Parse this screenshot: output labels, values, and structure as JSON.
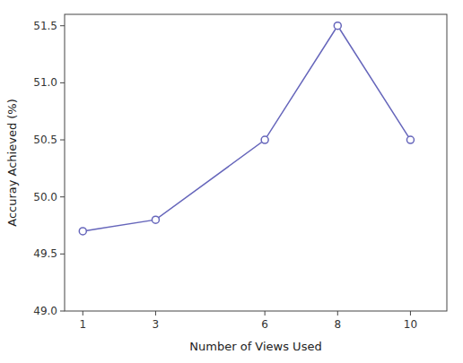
{
  "chart_data": {
    "type": "line",
    "x": [
      1,
      3,
      6,
      8,
      10
    ],
    "values": [
      49.7,
      49.8,
      50.5,
      51.5,
      50.5
    ],
    "color": "#6666bb",
    "marker": "circle",
    "xlabel": "Number of Views Used",
    "ylabel": "Accuray Achieved (%)",
    "xlim": [
      0.5,
      11
    ],
    "ylim": [
      49,
      51.6
    ],
    "xticks": [
      1,
      3,
      6,
      8,
      10
    ],
    "yticks": [
      {
        "value": 49,
        "label": "49.0"
      },
      49.5,
      {
        "value": 50,
        "label": "50.0"
      },
      50.5,
      {
        "value": 51,
        "label": "51.0"
      },
      51.5
    ],
    "grid": false
  }
}
